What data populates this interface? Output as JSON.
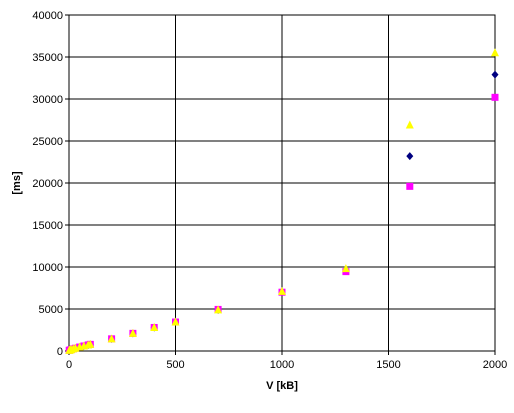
{
  "chart_data": {
    "type": "scatter",
    "title": "",
    "xlabel": "V [kB]",
    "ylabel": "[ms]",
    "xlim": [
      0,
      2000
    ],
    "ylim": [
      0,
      40000
    ],
    "x_ticks": [
      0,
      500,
      1000,
      1500,
      2000
    ],
    "y_ticks": [
      0,
      5000,
      10000,
      15000,
      20000,
      25000,
      30000,
      35000,
      40000
    ],
    "grid": true,
    "legend": "none",
    "series": [
      {
        "marker": "diamond",
        "color": "#000080",
        "points": [
          [
            1,
            80
          ],
          [
            5,
            120
          ],
          [
            10,
            160
          ],
          [
            20,
            250
          ],
          [
            30,
            330
          ],
          [
            50,
            470
          ],
          [
            70,
            600
          ],
          [
            90,
            720
          ],
          [
            100,
            790
          ],
          [
            200,
            1450
          ],
          [
            300,
            2100
          ],
          [
            400,
            2800
          ],
          [
            500,
            3450
          ],
          [
            700,
            4900
          ],
          [
            1000,
            7050
          ],
          [
            1300,
            9600
          ],
          [
            1600,
            23200
          ],
          [
            2000,
            32900
          ]
        ]
      },
      {
        "marker": "square",
        "color": "#FF00FF",
        "points": [
          [
            1,
            80
          ],
          [
            5,
            120
          ],
          [
            10,
            160
          ],
          [
            20,
            250
          ],
          [
            30,
            330
          ],
          [
            50,
            470
          ],
          [
            70,
            600
          ],
          [
            90,
            720
          ],
          [
            100,
            790
          ],
          [
            200,
            1450
          ],
          [
            300,
            2100
          ],
          [
            400,
            2800
          ],
          [
            500,
            3450
          ],
          [
            700,
            4950
          ],
          [
            1000,
            7000
          ],
          [
            1300,
            9450
          ],
          [
            1600,
            19600
          ],
          [
            2000,
            30200
          ]
        ]
      },
      {
        "marker": "triangle",
        "color": "#FFFF00",
        "points": [
          [
            1,
            80
          ],
          [
            5,
            120
          ],
          [
            10,
            160
          ],
          [
            20,
            250
          ],
          [
            30,
            330
          ],
          [
            50,
            470
          ],
          [
            70,
            600
          ],
          [
            90,
            720
          ],
          [
            100,
            790
          ],
          [
            200,
            1450
          ],
          [
            300,
            2100
          ],
          [
            400,
            2800
          ],
          [
            500,
            3450
          ],
          [
            700,
            4900
          ],
          [
            1000,
            7100
          ],
          [
            1300,
            9800
          ],
          [
            1600,
            26900
          ],
          [
            2000,
            35500
          ]
        ]
      }
    ]
  }
}
